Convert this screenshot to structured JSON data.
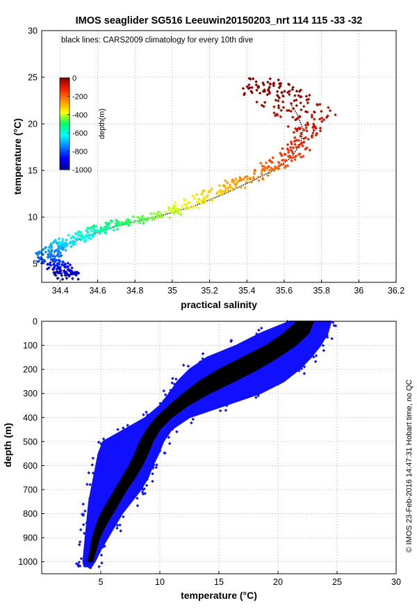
{
  "figure": {
    "title": "IMOS seaglider SG516 Leeuwin20150203_nrt 114  115  -33  -32",
    "side_note": "© IMOS 23-Feb-2016 14:47:31 Hobart time, no QC"
  },
  "chart_data": [
    {
      "type": "scatter",
      "title": "IMOS seaglider SG516 Leeuwin20150203_nrt 114  115  -33  -32",
      "xlabel": "practical salinity",
      "ylabel": "temperature (°C)",
      "xlim": [
        34.3,
        36.2
      ],
      "ylim": [
        3,
        30
      ],
      "xticks": [
        34.4,
        34.6,
        34.8,
        35,
        35.2,
        35.4,
        35.6,
        35.8,
        36,
        36.2
      ],
      "yticks": [
        5,
        10,
        15,
        20,
        25,
        30
      ],
      "grid": true,
      "annotation": "black lines: CARS2009 climatology for every 10th dive",
      "colorbar": {
        "label": "depth(m)",
        "range": [
          -1000,
          0
        ],
        "ticks": [
          0,
          -200,
          -400,
          -600,
          -800,
          -1000
        ],
        "colormap": "jet"
      },
      "series": [
        {
          "role": "glider",
          "color_by": "depth",
          "points": [
            [
              34.42,
              3.6,
              -980
            ],
            [
              34.45,
              4.0,
              -950
            ],
            [
              34.4,
              4.5,
              -900
            ],
            [
              34.37,
              5.0,
              -850
            ],
            [
              34.34,
              5.6,
              -800
            ],
            [
              34.33,
              6.1,
              -760
            ],
            [
              34.36,
              6.6,
              -720
            ],
            [
              34.41,
              7.1,
              -680
            ],
            [
              34.47,
              7.6,
              -640
            ],
            [
              34.53,
              8.1,
              -600
            ],
            [
              34.6,
              8.6,
              -560
            ],
            [
              34.68,
              9.1,
              -520
            ],
            [
              34.78,
              9.6,
              -480
            ],
            [
              34.9,
              10.1,
              -440
            ],
            [
              35.02,
              10.8,
              -400
            ],
            [
              35.13,
              11.6,
              -360
            ],
            [
              35.23,
              12.5,
              -320
            ],
            [
              35.33,
              13.4,
              -280
            ],
            [
              35.42,
              14.3,
              -240
            ],
            [
              35.52,
              15.2,
              -200
            ],
            [
              35.6,
              16.2,
              -160
            ],
            [
              35.67,
              17.3,
              -130
            ],
            [
              35.72,
              18.7,
              -100
            ],
            [
              35.73,
              20.0,
              -70
            ],
            [
              35.7,
              21.2,
              -50
            ],
            [
              35.62,
              22.3,
              -30
            ],
            [
              35.55,
              23.2,
              -15
            ],
            [
              35.52,
              24.0,
              -5
            ]
          ]
        },
        {
          "role": "climatology",
          "name": "CARS2009",
          "color": "#000000",
          "points": [
            [
              34.43,
              3.7
            ],
            [
              34.4,
              4.5
            ],
            [
              34.36,
              5.5
            ],
            [
              34.37,
              6.3
            ],
            [
              34.45,
              7.2
            ],
            [
              34.55,
              8.0
            ],
            [
              34.66,
              8.8
            ],
            [
              34.8,
              9.5
            ],
            [
              34.95,
              10.2
            ],
            [
              35.12,
              11.2
            ],
            [
              35.28,
              12.5
            ],
            [
              35.42,
              13.8
            ],
            [
              35.54,
              15.0
            ],
            [
              35.64,
              16.4
            ],
            [
              35.69,
              18.0
            ],
            [
              35.7,
              19.5
            ],
            [
              35.67,
              21.0
            ],
            [
              35.63,
              22.3
            ]
          ]
        }
      ]
    },
    {
      "type": "scatter",
      "xlabel": "temperature (°C)",
      "ylabel": "depth (m)",
      "xlim": [
        0,
        30
      ],
      "ylim": [
        1050,
        0
      ],
      "xticks": [
        5,
        10,
        15,
        20,
        25,
        30
      ],
      "yticks": [
        0,
        100,
        200,
        300,
        400,
        500,
        600,
        700,
        800,
        900,
        1000
      ],
      "grid": true,
      "series": [
        {
          "role": "glider",
          "color": "#1010ff",
          "profile": [
            {
              "d": 0,
              "min": 21.0,
              "max": 24.5
            },
            {
              "d": 50,
              "min": 18.5,
              "max": 24.2
            },
            {
              "d": 100,
              "min": 16.5,
              "max": 23.6
            },
            {
              "d": 150,
              "min": 14.0,
              "max": 22.8
            },
            {
              "d": 200,
              "min": 12.5,
              "max": 21.8
            },
            {
              "d": 250,
              "min": 11.5,
              "max": 20.5
            },
            {
              "d": 300,
              "min": 10.8,
              "max": 18.5
            },
            {
              "d": 350,
              "min": 10.0,
              "max": 15.5
            },
            {
              "d": 400,
              "min": 8.8,
              "max": 12.5
            },
            {
              "d": 450,
              "min": 7.0,
              "max": 11.0
            },
            {
              "d": 500,
              "min": 5.2,
              "max": 10.3
            },
            {
              "d": 550,
              "min": 4.8,
              "max": 9.9
            },
            {
              "d": 600,
              "min": 4.6,
              "max": 9.4
            },
            {
              "d": 650,
              "min": 4.4,
              "max": 9.0
            },
            {
              "d": 700,
              "min": 4.2,
              "max": 8.4
            },
            {
              "d": 750,
              "min": 4.0,
              "max": 7.6
            },
            {
              "d": 800,
              "min": 3.9,
              "max": 6.8
            },
            {
              "d": 850,
              "min": 3.8,
              "max": 6.2
            },
            {
              "d": 900,
              "min": 3.7,
              "max": 5.6
            },
            {
              "d": 950,
              "min": 3.6,
              "max": 5.0
            },
            {
              "d": 1000,
              "min": 3.5,
              "max": 4.5
            },
            {
              "d": 1020,
              "min": 3.6,
              "max": 4.2
            }
          ]
        },
        {
          "role": "climatology",
          "name": "CARS2009",
          "color": "#000000",
          "profile": [
            {
              "d": 0,
              "min": 21.6,
              "max": 23.0
            },
            {
              "d": 50,
              "min": 20.5,
              "max": 22.6
            },
            {
              "d": 100,
              "min": 19.0,
              "max": 21.5
            },
            {
              "d": 150,
              "min": 17.0,
              "max": 20.0
            },
            {
              "d": 200,
              "min": 15.0,
              "max": 18.3
            },
            {
              "d": 250,
              "min": 13.3,
              "max": 16.3
            },
            {
              "d": 300,
              "min": 12.0,
              "max": 14.2
            },
            {
              "d": 350,
              "min": 10.8,
              "max": 12.4
            },
            {
              "d": 400,
              "min": 9.7,
              "max": 11.0
            },
            {
              "d": 450,
              "min": 8.9,
              "max": 10.0
            },
            {
              "d": 500,
              "min": 8.3,
              "max": 9.4
            },
            {
              "d": 550,
              "min": 7.9,
              "max": 9.0
            },
            {
              "d": 600,
              "min": 7.4,
              "max": 8.5
            },
            {
              "d": 650,
              "min": 6.8,
              "max": 7.9
            },
            {
              "d": 700,
              "min": 6.2,
              "max": 7.2
            },
            {
              "d": 750,
              "min": 5.6,
              "max": 6.6
            },
            {
              "d": 800,
              "min": 5.0,
              "max": 6.0
            },
            {
              "d": 850,
              "min": 4.6,
              "max": 5.4
            },
            {
              "d": 900,
              "min": 4.3,
              "max": 4.9
            },
            {
              "d": 950,
              "min": 4.1,
              "max": 4.6
            },
            {
              "d": 1000,
              "min": 3.9,
              "max": 4.3
            }
          ]
        }
      ]
    }
  ]
}
